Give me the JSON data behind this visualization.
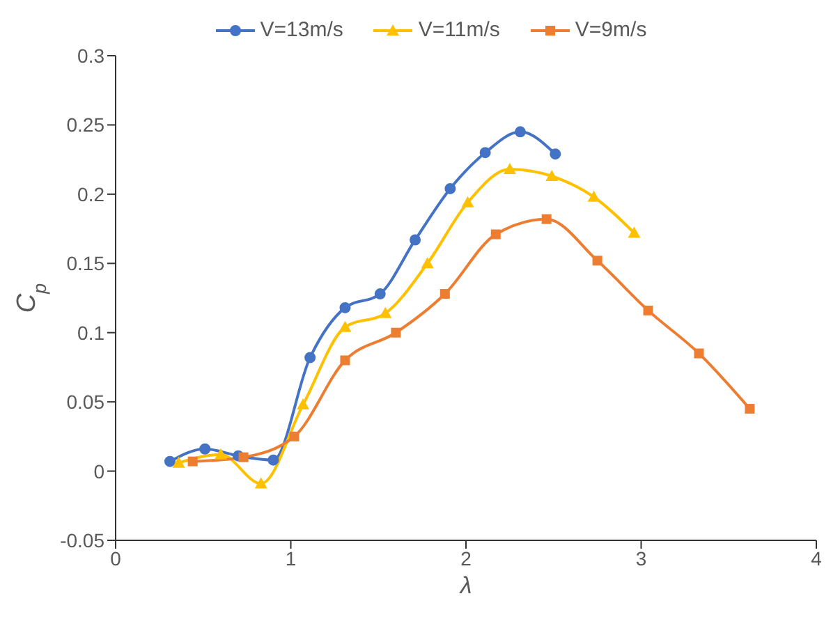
{
  "chart_data": {
    "type": "line",
    "xlabel": "λ",
    "ylabel": "C$_{p}$",
    "xlim": [
      0,
      4
    ],
    "xticks": [
      0,
      1,
      2,
      3,
      4
    ],
    "ylim": [
      -0.05,
      0.3
    ],
    "yticks": [
      -0.05,
      0,
      0.05,
      0.1,
      0.15,
      0.2,
      0.25,
      0.3
    ],
    "legend": "top",
    "series": [
      {
        "name": "V=13m/s",
        "color": "#4472c4",
        "marker": "circle",
        "x": [
          0.31,
          0.51,
          0.7,
          0.9,
          1.11,
          1.31,
          1.51,
          1.71,
          1.91,
          2.11,
          2.31,
          2.51
        ],
        "values": [
          0.007,
          0.016,
          0.011,
          0.008,
          0.082,
          0.118,
          0.128,
          0.167,
          0.204,
          0.23,
          0.245,
          0.229
        ]
      },
      {
        "name": "V=11m/s",
        "color": "#ffc000",
        "marker": "triangle",
        "x": [
          0.36,
          0.6,
          0.83,
          1.07,
          1.31,
          1.54,
          1.78,
          2.01,
          2.25,
          2.49,
          2.73,
          2.96
        ],
        "values": [
          0.006,
          0.012,
          -0.009,
          0.048,
          0.104,
          0.114,
          0.15,
          0.194,
          0.218,
          0.213,
          0.198,
          0.172
        ]
      },
      {
        "name": "V=9m/s",
        "color": "#ed7d31",
        "marker": "square",
        "x": [
          0.44,
          0.73,
          1.02,
          1.31,
          1.6,
          1.88,
          2.17,
          2.46,
          2.75,
          3.04,
          3.33,
          3.62
        ],
        "values": [
          0.007,
          0.01,
          0.025,
          0.08,
          0.1,
          0.128,
          0.171,
          0.182,
          0.152,
          0.116,
          0.085,
          0.045
        ]
      }
    ]
  }
}
